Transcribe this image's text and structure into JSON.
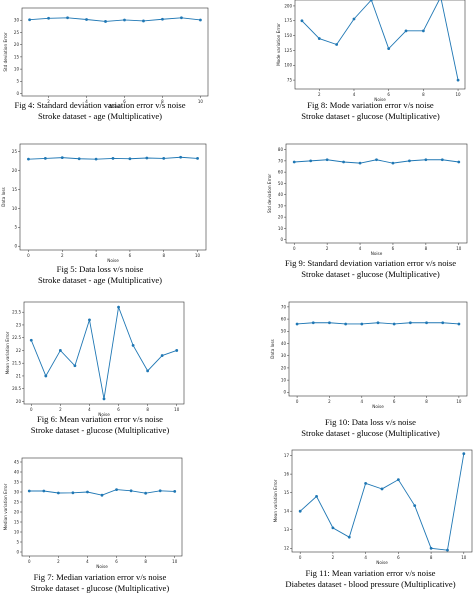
{
  "figures": [
    {
      "caption": "Fig 4: Standard deviation variation error v/s noise",
      "caption2": "Stroke dataset - age (Multiplicative)",
      "chart_data": {
        "type": "line",
        "xlabel": "Noise",
        "ylabel": "Std deviation Error",
        "x": [
          1,
          2,
          3,
          4,
          5,
          6,
          7,
          8,
          9,
          10
        ],
        "values": [
          30.2,
          30.8,
          31.0,
          30.3,
          29.5,
          30.1,
          29.7,
          30.4,
          31.0,
          30.1
        ],
        "xticks": [
          2,
          4,
          6,
          8,
          10
        ],
        "yticks": [
          0,
          5,
          10,
          15,
          20,
          25,
          30
        ],
        "xlim": [
          0.6,
          10.4
        ],
        "ylim": [
          -1,
          35
        ],
        "color": "#1f77b4"
      }
    },
    {
      "caption": "Fig 8: Mode variation error v/s noise",
      "caption2": "Stroke dataset - glucose (Multiplicative)",
      "chart_data": {
        "type": "line",
        "xlabel": "Noise",
        "ylabel": "Mode variation Error",
        "x": [
          1,
          2,
          3,
          4,
          5,
          6,
          7,
          8,
          9,
          10
        ],
        "values": [
          175,
          145,
          135,
          178,
          210,
          128,
          158,
          158,
          215,
          75
        ],
        "xticks": [
          2,
          4,
          6,
          8,
          10
        ],
        "yticks": [
          75,
          100,
          125,
          150,
          175,
          200
        ],
        "xlim": [
          0.6,
          10.4
        ],
        "ylim": [
          60,
          210
        ],
        "color": "#1f77b4"
      }
    },
    {
      "caption": "Fig 5: Data loss v/s noise",
      "caption2": "Stroke dataset - age (Multiplicative)",
      "chart_data": {
        "type": "line",
        "xlabel": "Noise",
        "ylabel": "Data loss",
        "x": [
          0,
          1,
          2,
          3,
          4,
          5,
          6,
          7,
          8,
          9,
          10
        ],
        "values": [
          23.0,
          23.2,
          23.4,
          23.1,
          23.0,
          23.2,
          23.1,
          23.3,
          23.2,
          23.5,
          23.2
        ],
        "xticks": [
          0,
          2,
          4,
          6,
          8,
          10
        ],
        "yticks": [
          0,
          5,
          10,
          15,
          20,
          25
        ],
        "xlim": [
          -0.5,
          10.5
        ],
        "ylim": [
          -1,
          27
        ],
        "color": "#1f77b4"
      }
    },
    {
      "caption": "Fig 9: Standard deviation variation error v/s noise",
      "caption2": "Stroke dataset - glucose (Multiplicative)",
      "chart_data": {
        "type": "line",
        "xlabel": "Noise",
        "ylabel": "Std deviation Error",
        "x": [
          0,
          1,
          2,
          3,
          4,
          5,
          6,
          7,
          8,
          9,
          10
        ],
        "values": [
          69,
          70,
          71,
          69,
          68,
          71,
          68,
          70,
          71,
          71,
          69
        ],
        "xticks": [
          0,
          2,
          4,
          6,
          8,
          10
        ],
        "yticks": [
          0,
          10,
          20,
          30,
          40,
          50,
          60,
          70,
          80
        ],
        "xlim": [
          -0.5,
          10.5
        ],
        "ylim": [
          -3,
          85
        ],
        "color": "#1f77b4"
      }
    },
    {
      "caption": "Fig 6: Mean variation error v/s noise",
      "caption2": "Stroke dataset - glucose (Multiplicative)",
      "chart_data": {
        "type": "line",
        "xlabel": "Noise",
        "ylabel": "Mean variation Error",
        "x": [
          0,
          1,
          2,
          3,
          4,
          5,
          6,
          7,
          8,
          9,
          10
        ],
        "values": [
          22.4,
          21.0,
          22.0,
          21.4,
          23.2,
          20.1,
          23.7,
          22.2,
          21.2,
          21.8,
          22.0
        ],
        "xticks": [
          0,
          2,
          4,
          6,
          8,
          10
        ],
        "yticks": [
          20.0,
          20.5,
          21.0,
          21.5,
          22.0,
          22.5,
          23.0,
          23.5
        ],
        "xlim": [
          -0.5,
          10.5
        ],
        "ylim": [
          19.9,
          23.9
        ],
        "color": "#1f77b4"
      }
    },
    {
      "caption": "Fig 10: Data loss v/s noise",
      "caption2": "Stroke dataset - glucose (Multiplicative)",
      "chart_data": {
        "type": "line",
        "xlabel": "Noise",
        "ylabel": "Data loss",
        "x": [
          0,
          1,
          2,
          3,
          4,
          5,
          6,
          7,
          8,
          9,
          10
        ],
        "values": [
          56,
          57,
          57,
          56,
          56,
          57,
          56,
          57,
          57,
          57,
          56
        ],
        "xticks": [
          0,
          2,
          4,
          6,
          8,
          10
        ],
        "yticks": [
          0,
          10,
          20,
          30,
          40,
          50,
          60,
          70
        ],
        "xlim": [
          -0.5,
          10.5
        ],
        "ylim": [
          -3,
          74
        ],
        "color": "#1f77b4"
      }
    },
    {
      "caption": "Fig 7: Median variation error v/s noise",
      "caption2": "Stroke dataset - glucose (Multiplicative)",
      "chart_data": {
        "type": "line",
        "xlabel": "Noise",
        "ylabel": "Median variation Error",
        "x": [
          0,
          1,
          2,
          3,
          4,
          5,
          6,
          7,
          8,
          9,
          10
        ],
        "values": [
          30.5,
          30.5,
          29.5,
          29.6,
          30.0,
          28.4,
          31.2,
          30.6,
          29.4,
          30.6,
          30.3
        ],
        "xticks": [
          0,
          2,
          4,
          6,
          8,
          10
        ],
        "yticks": [
          0,
          5,
          10,
          15,
          20,
          25,
          30,
          35,
          40,
          45
        ],
        "xlim": [
          -0.5,
          10.5
        ],
        "ylim": [
          -2,
          47
        ],
        "color": "#1f77b4"
      }
    },
    {
      "caption": "Fig 11: Mean variation error v/s noise",
      "caption2": "Diabetes dataset - blood pressure (Multiplicative)",
      "chart_data": {
        "type": "line",
        "xlabel": "Noise",
        "ylabel": "Mean variation Error",
        "x": [
          0,
          1,
          2,
          3,
          4,
          5,
          6,
          7,
          8,
          9,
          10
        ],
        "values": [
          14.0,
          14.8,
          13.1,
          12.6,
          15.5,
          15.2,
          15.7,
          14.3,
          12.0,
          11.9,
          17.1
        ],
        "xticks": [
          0,
          2,
          4,
          6,
          8,
          10
        ],
        "yticks": [
          12,
          13,
          14,
          15,
          16,
          17
        ],
        "xlim": [
          -0.5,
          10.5
        ],
        "ylim": [
          11.8,
          17.3
        ],
        "color": "#1f77b4"
      }
    }
  ]
}
